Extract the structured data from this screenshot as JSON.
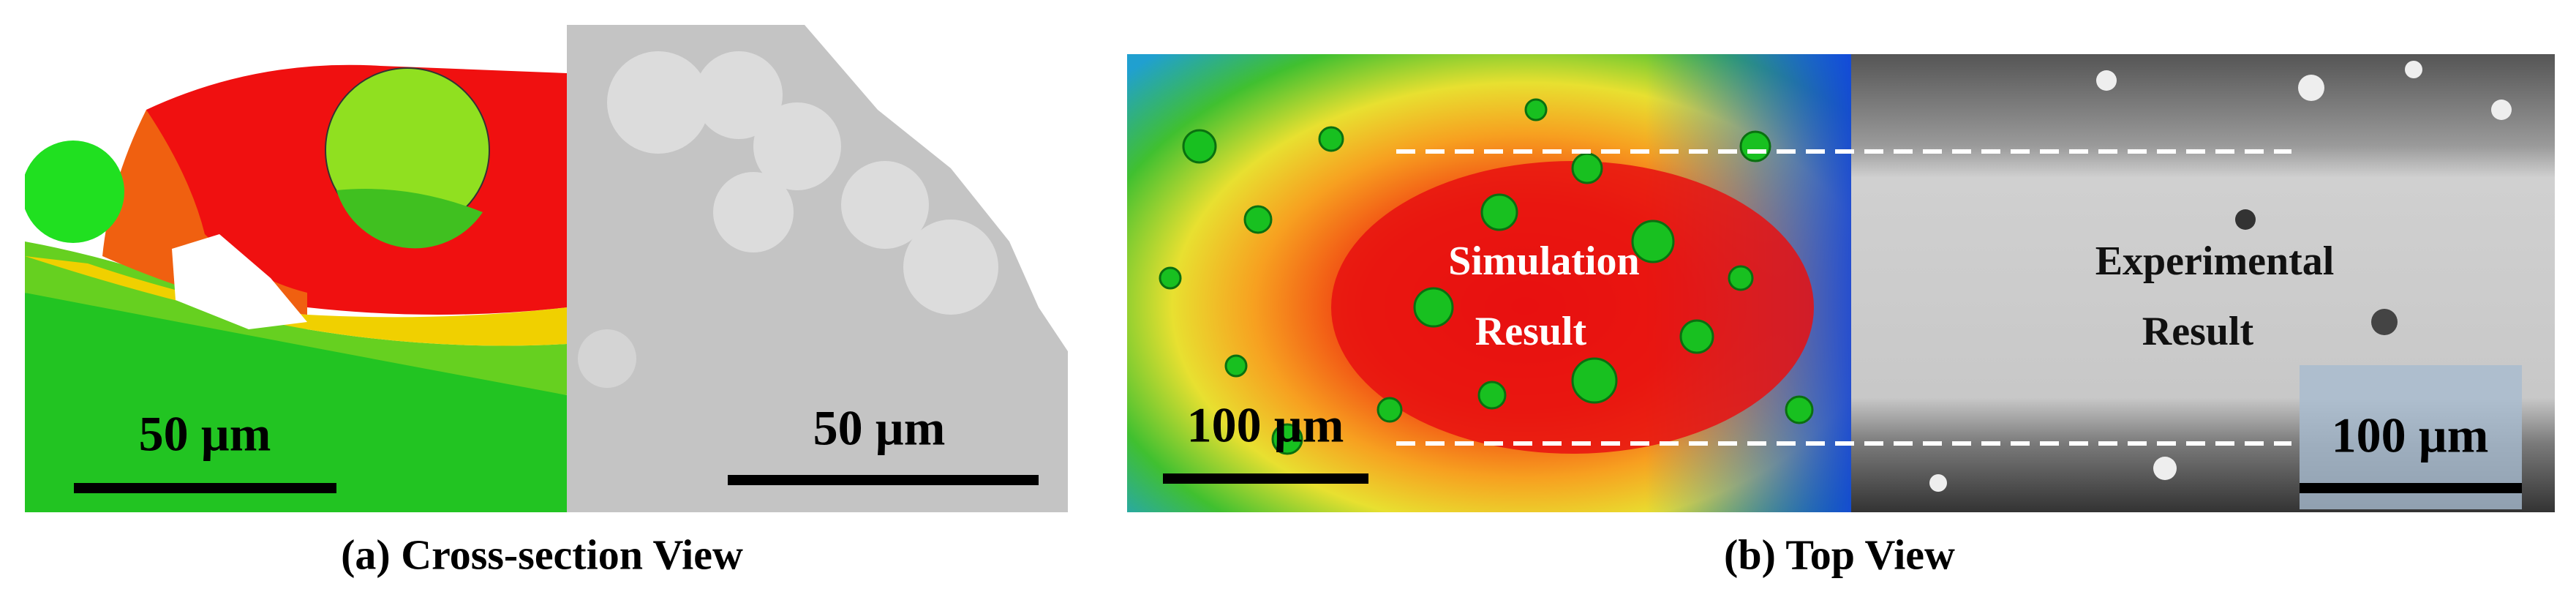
{
  "panels": [
    {
      "caption": "(a) Cross-section View",
      "images": [
        {
          "scale_bar": "50 µm"
        },
        {
          "scale_bar": "50 µm"
        }
      ]
    },
    {
      "caption": "(b) Top View",
      "images": [
        {
          "label": [
            "Simulation",
            "Result"
          ],
          "scale_bar": "100 µm"
        },
        {
          "label": [
            "Experimental",
            "Result"
          ],
          "scale_bar": "100 µm"
        }
      ]
    }
  ]
}
